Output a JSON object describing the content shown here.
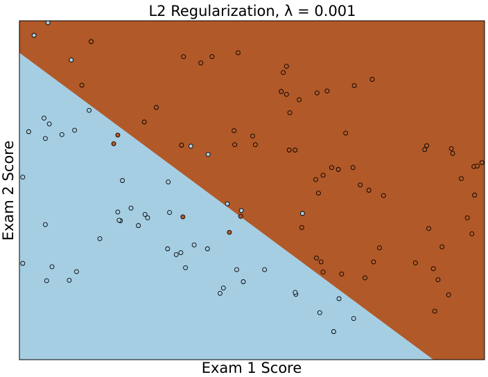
{
  "chart_data": {
    "type": "scatter",
    "title": "L2 Regularization, λ = 0.001",
    "xlabel": "Exam 1 Score",
    "ylabel": "Exam 2 Score",
    "xlim": [
      30,
      100
    ],
    "ylim": [
      30,
      100
    ],
    "ticks_visible": false,
    "grid": false,
    "legend": "none",
    "background": "decision regions",
    "regions": {
      "class_0_color": "#a6cee3",
      "class_1_color": "#b15928",
      "boundary": [
        [
          30,
          93.4
        ],
        [
          92.3,
          30
        ]
      ]
    },
    "series": [
      {
        "class": 0,
        "color": "#a6cee3",
        "x": [
          34.3,
          32.2,
          60.2,
          71.6,
          78.1,
          75.2,
          37.8,
          40.5,
          33.7,
          33.9,
          34.5,
          38.3,
          31.4,
          36.4,
          55.8,
          58.4,
          72.6,
          30.5,
          52.4,
          45.5,
          46.8,
          52.6,
          56.3,
          38.6,
          33.9,
          45.2,
          47.9,
          48.9,
          61.3,
          63.4,
          58.3,
          52.3,
          42.1,
          45.0,
          49.3,
          53.6,
          30.5,
          34.9,
          34.1,
          37.5,
          71.5,
          55.0,
          44.8,
          62.7,
          54.3,
          63.7,
          60.7,
          66.9,
          77.3,
          80.3
        ],
        "y": [
          99.6,
          97.0,
          43.7,
          43.5,
          42.6,
          39.7,
          91.9,
          81.5,
          79.9,
          75.7,
          78.7,
          77.4,
          77.1,
          76.5,
          74.1,
          72.4,
          60.2,
          67.7,
          66.7,
          67.0,
          61.3,
          60.4,
          53.7,
          48.2,
          57.9,
          58.7,
          57.7,
          60.0,
          62.2,
          60.8,
          52.9,
          52.9,
          55.0,
          58.8,
          59.3,
          51.7,
          49.9,
          49.2,
          46.3,
          46.4,
          43.9,
          49.0,
          60.5,
          48.6,
          52.1,
          46.1,
          44.8,
          48.6,
          35.8,
          38.5
        ]
      },
      {
        "class": 1,
        "color": "#b15928",
        "x": [
          40.8,
          54.7,
          57.3,
          62.9,
          59.0,
          70.2,
          69.7,
          69.4,
          83.1,
          80.4,
          72.1,
          76.3,
          74.8,
          70.2,
          70.7,
          65.1,
          44.2,
          48.8,
          50.6,
          44.8,
          54.4,
          39.4,
          62.4,
          62.3,
          65.5,
          70.6,
          71.5,
          79.1,
          77.0,
          78.0,
          75.7,
          74.6,
          75.0,
          80.2,
          91.3,
          95.2,
          98.4,
          99.6,
          91.0,
          95.0,
          96.5,
          98.9,
          98.5,
          91.6,
          97.4,
          84.8,
          81.3,
          82.6,
          82.0,
          78.5,
          75.7,
          89.6,
          93.6,
          98.1,
          93.0,
          94.6,
          92.5,
          92.3,
          61.6,
          63.3,
          72.5,
          74.7,
          75.4,
          83.3,
          54.6,
          84.2
        ],
        "y": [
          95.7,
          92.6,
          91.3,
          93.4,
          92.6,
          90.6,
          89.3,
          85.4,
          87.9,
          86.6,
          83.7,
          85.5,
          85.1,
          84.8,
          81.0,
          76.2,
          74.6,
          79.1,
          82.1,
          76.4,
          74.3,
          86.7,
          74.4,
          77.3,
          74.4,
          73.3,
          73.3,
          76.8,
          69.7,
          69.3,
          68.1,
          67.2,
          64.4,
          69.7,
          74.2,
          72.6,
          69.9,
          70.7,
          73.4,
          73.6,
          67.4,
          70.0,
          64.0,
          57.1,
          59.3,
          63.9,
          66.1,
          65.0,
          46.9,
          47.7,
          48.1,
          50.0,
          53.3,
          56.0,
          46.5,
          43.4,
          40.0,
          48.8,
          56.3,
          59.6,
          57.3,
          51.0,
          50.2,
          50.2,
          59.5,
          53.1
        ]
      }
    ]
  }
}
